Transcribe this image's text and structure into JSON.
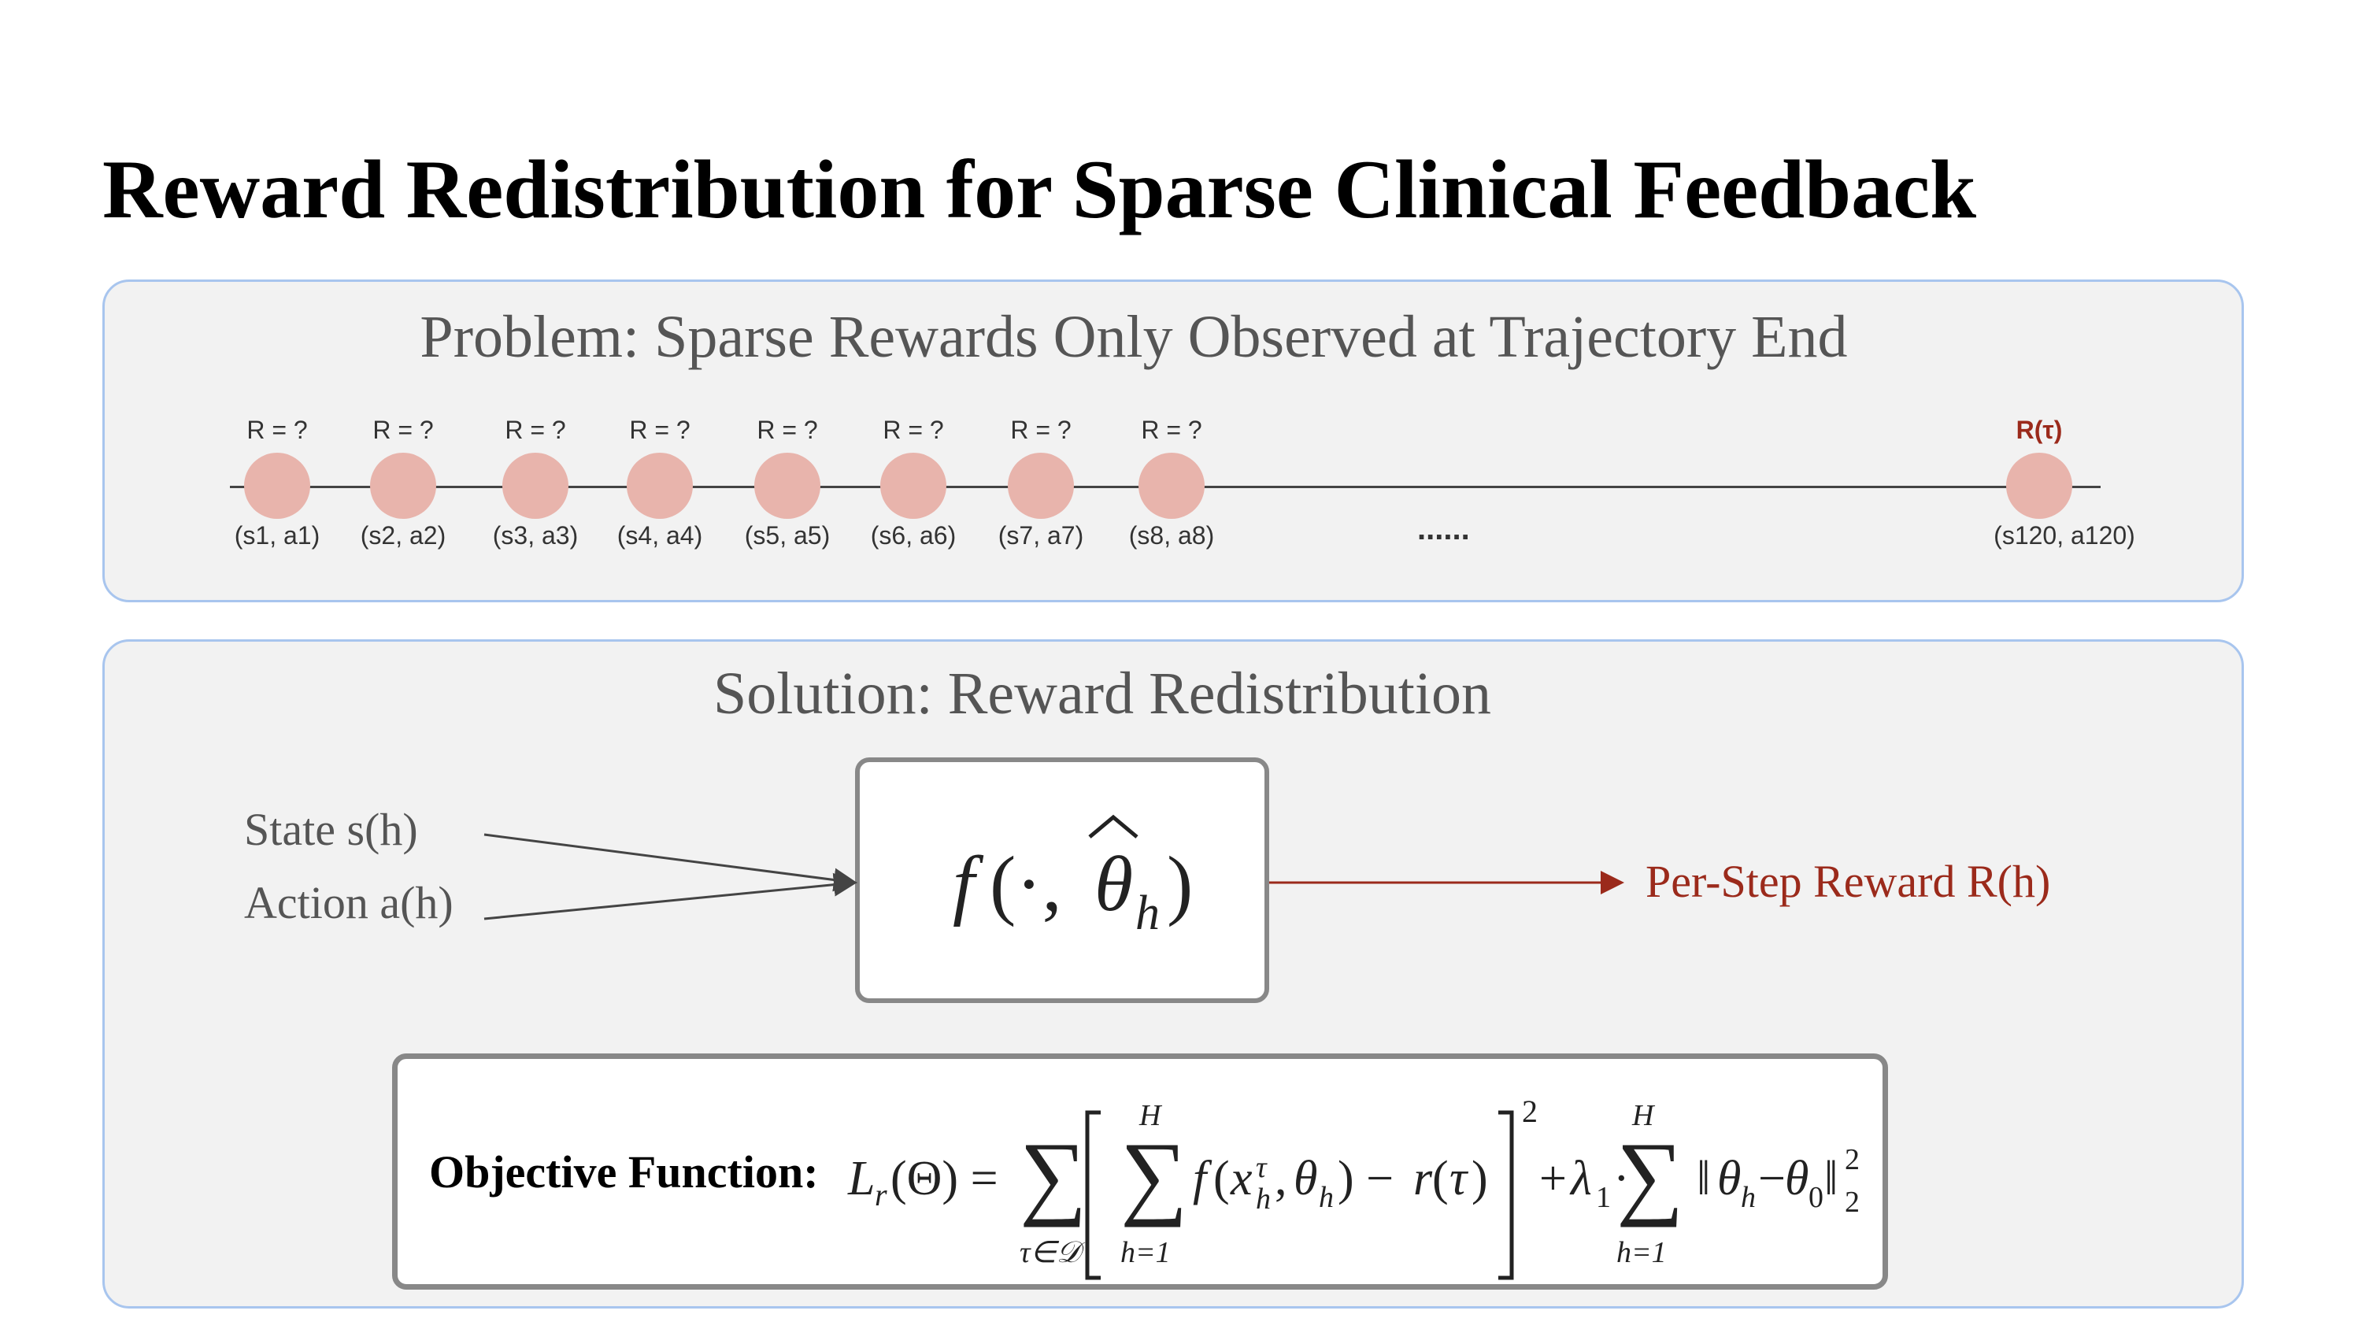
{
  "title": "Reward Redistribution for Sparse Clinical Feedback",
  "problem": {
    "heading": "Problem: Sparse Rewards Only Observed at Trajectory End",
    "steps": [
      {
        "reward": "R = ?",
        "state": "(s1, a1)"
      },
      {
        "reward": "R = ?",
        "state": "(s2, a2)"
      },
      {
        "reward": "R = ?",
        "state": "(s3, a3)"
      },
      {
        "reward": "R = ?",
        "state": "(s4, a4)"
      },
      {
        "reward": "R = ?",
        "state": "(s5, a5)"
      },
      {
        "reward": "R = ?",
        "state": "(s6, a6)"
      },
      {
        "reward": "R = ?",
        "state": "(s7, a7)"
      },
      {
        "reward": "R = ?",
        "state": "(s8, a8)"
      }
    ],
    "ellipsis": "......",
    "final_step": {
      "reward": "R(τ)",
      "state": "(s120, a120)"
    }
  },
  "solution": {
    "heading": "Solution: Reward Redistribution",
    "input_state": "State s(h)",
    "input_action": "Action a(h)",
    "output": "Per-Step Reward R(h)",
    "objective_label": "Objective Function:"
  },
  "colors": {
    "node_fill": "#e8b4ac",
    "accent_red": "#9b2a1b",
    "panel_border": "#a8c5ee",
    "panel_fill": "#f2f2f2"
  }
}
